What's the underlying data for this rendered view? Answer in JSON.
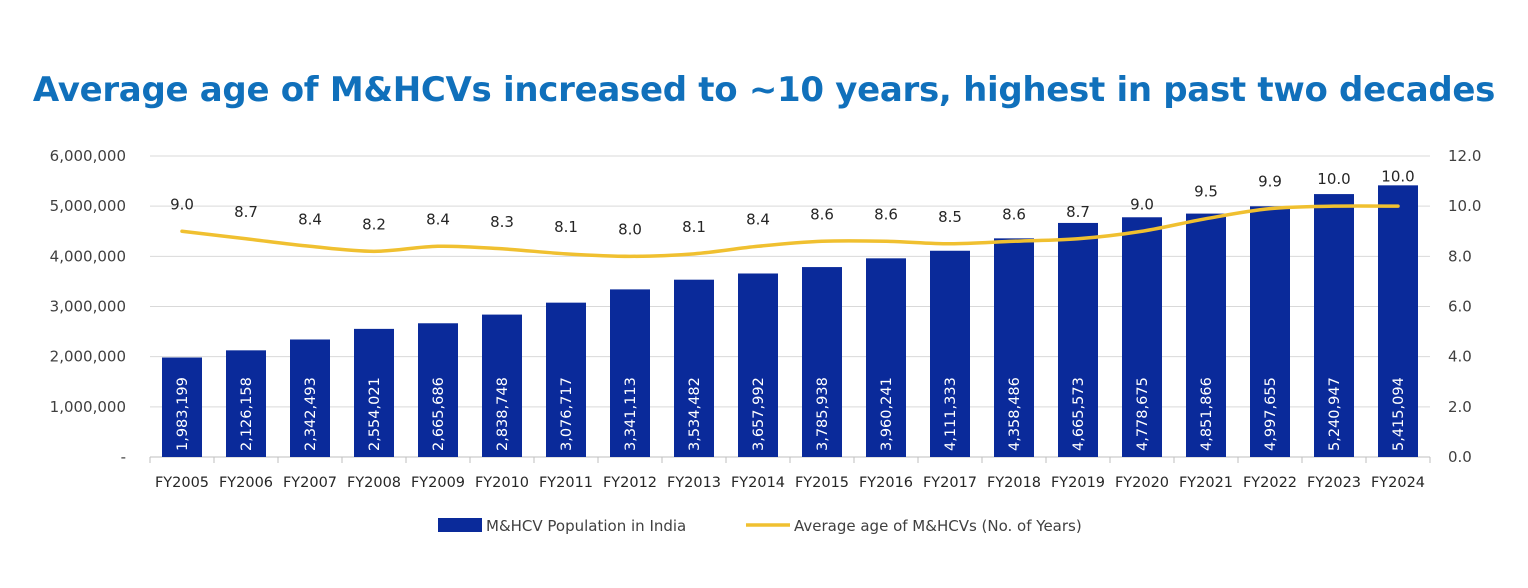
{
  "chart_data": {
    "type": "bar",
    "title": "Average age of M&HCVs increased to ~10 years, highest in past two decades",
    "categories": [
      "FY2005",
      "FY2006",
      "FY2007",
      "FY2008",
      "FY2009",
      "FY2010",
      "FY2011",
      "FY2012",
      "FY2013",
      "FY2014",
      "FY2015",
      "FY2016",
      "FY2017",
      "FY2018",
      "FY2019",
      "FY2020",
      "FY2021",
      "FY2022",
      "FY2023",
      "FY2024"
    ],
    "series": [
      {
        "name": "M&HCV Population in India",
        "type": "bar",
        "axis": "left",
        "color": "#0a2a9a",
        "values": [
          1983199,
          2126158,
          2342493,
          2554021,
          2665686,
          2838748,
          3076717,
          3341113,
          3534482,
          3657992,
          3785938,
          3960241,
          4111333,
          4358486,
          4665573,
          4778675,
          4851866,
          4997655,
          5240947,
          5415094
        ],
        "labels": [
          "1,983,199",
          "2,126,158",
          "2,342,493",
          "2,554,021",
          "2,665,686",
          "2,838,748",
          "3,076,717",
          "3,341,113",
          "3,534,482",
          "3,657,992",
          "3,785,938",
          "3,960,241",
          "4,111,333",
          "4,358,486",
          "4,665,573",
          "4,778,675",
          "4,851,866",
          "4,997,655",
          "5,240,947",
          "5,415,094"
        ]
      },
      {
        "name": "Average age of M&HCVs (No. of Years)",
        "type": "line",
        "axis": "right",
        "color": "#f0c030",
        "values": [
          9.0,
          8.7,
          8.4,
          8.2,
          8.4,
          8.3,
          8.1,
          8.0,
          8.1,
          8.4,
          8.6,
          8.6,
          8.5,
          8.6,
          8.7,
          9.0,
          9.5,
          9.9,
          10.0,
          10.0
        ],
        "labels": [
          "9.0",
          "8.7",
          "8.4",
          "8.2",
          "8.4",
          "8.3",
          "8.1",
          "8.0",
          "8.1",
          "8.4",
          "8.6",
          "8.6",
          "8.5",
          "8.6",
          "8.7",
          "9.0",
          "9.5",
          "9.9",
          "10.0",
          "10.0"
        ]
      }
    ],
    "ylim": [
      0,
      6000000
    ],
    "y2lim": [
      0,
      12
    ],
    "yticks": [
      "-",
      "1,000,000",
      "2,000,000",
      "3,000,000",
      "4,000,000",
      "5,000,000",
      "6,000,000"
    ],
    "y2ticks": [
      "0.0",
      "2.0",
      "4.0",
      "6.0",
      "8.0",
      "10.0",
      "12.0"
    ],
    "grid": true,
    "legend": "bottom"
  }
}
